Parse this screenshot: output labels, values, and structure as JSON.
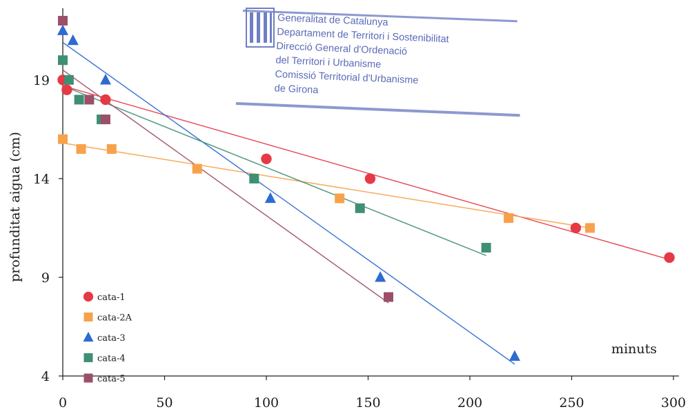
{
  "chart_data": {
    "type": "scatter",
    "title": "",
    "xlabel": "minuts",
    "ylabel": "profunditat aigua (cm)",
    "xlim": [
      0,
      300
    ],
    "ylim": [
      4,
      22
    ],
    "xticks": [
      0,
      50,
      100,
      150,
      200,
      250,
      300
    ],
    "yticks": [
      4,
      9,
      14,
      19
    ],
    "grid": false,
    "legend_position": "bottom-left",
    "series": [
      {
        "name": "cata-1",
        "marker": "circle",
        "color": "#e63946",
        "points": [
          [
            0,
            19
          ],
          [
            2,
            18.5
          ],
          [
            21,
            18
          ],
          [
            100,
            15
          ],
          [
            151,
            14
          ],
          [
            252,
            11.5
          ],
          [
            298,
            10
          ]
        ],
        "trend": [
          [
            0,
            18.7
          ],
          [
            298,
            9.9
          ]
        ]
      },
      {
        "name": "cata-2A",
        "marker": "square",
        "color": "#f7a24b",
        "points": [
          [
            0,
            16
          ],
          [
            9,
            15.5
          ],
          [
            24,
            15.5
          ],
          [
            66,
            14.5
          ],
          [
            136,
            13
          ],
          [
            219,
            12
          ],
          [
            259,
            11.5
          ]
        ],
        "trend": [
          [
            0,
            15.8
          ],
          [
            259,
            11.5
          ]
        ]
      },
      {
        "name": "cata-3",
        "marker": "triangle",
        "color": "#2e6ad1",
        "points": [
          [
            0,
            21.5
          ],
          [
            5,
            21
          ],
          [
            21,
            19
          ],
          [
            102,
            13
          ],
          [
            156,
            9
          ],
          [
            222,
            5
          ]
        ],
        "trend": [
          [
            0,
            20.9
          ],
          [
            222,
            4.6
          ]
        ]
      },
      {
        "name": "cata-4",
        "marker": "square",
        "color": "#3f8f73",
        "points": [
          [
            0,
            20
          ],
          [
            3,
            19
          ],
          [
            8,
            18
          ],
          [
            19,
            17
          ],
          [
            94,
            14
          ],
          [
            146,
            12.5
          ],
          [
            208,
            10.5
          ]
        ],
        "trend": [
          [
            0,
            18.7
          ],
          [
            208,
            10.1
          ]
        ]
      },
      {
        "name": "cata-5",
        "marker": "square",
        "color": "#9c5068",
        "points": [
          [
            0,
            22
          ],
          [
            13,
            18
          ],
          [
            21,
            17
          ],
          [
            160,
            8
          ]
        ],
        "trend": [
          [
            0,
            19.5
          ],
          [
            160,
            7.7
          ]
        ]
      }
    ]
  },
  "stamp": {
    "lines": [
      "Generalitat de Catalunya",
      "Departament de Territori i Sostenibilitat",
      "Direcció General d'Ordenació",
      "del Territori i Urbanisme",
      "Comissió Territorial d'Urbanisme",
      "de Girona"
    ],
    "color": "#5a6bb8"
  }
}
